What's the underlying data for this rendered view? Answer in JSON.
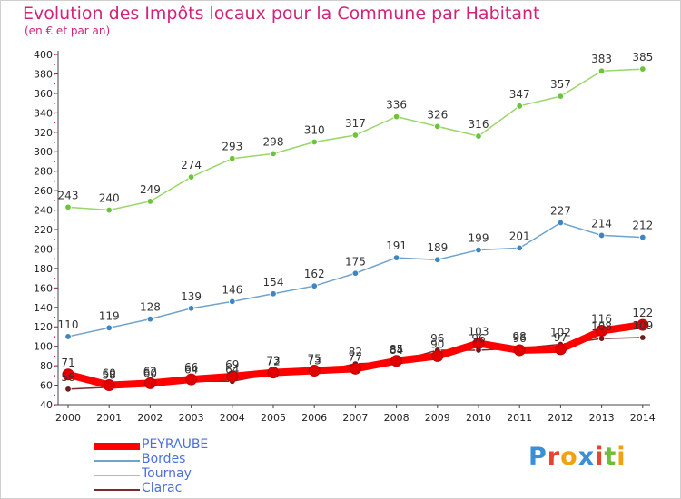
{
  "header": {
    "title": "Evolution des Impôts locaux pour la Commune par Habitant",
    "subtitle": "(en € et par an)"
  },
  "logo": {
    "text": "Proxiti"
  },
  "chart_data": {
    "type": "line",
    "title": "Evolution des Impôts locaux pour la Commune par Habitant",
    "subtitle": "(en € et par an)",
    "xlabel": "",
    "ylabel": "",
    "ylim": [
      40,
      400
    ],
    "yticks": [
      40,
      60,
      80,
      100,
      120,
      140,
      160,
      180,
      200,
      220,
      240,
      260,
      280,
      300,
      320,
      340,
      360,
      380,
      400
    ],
    "grid": false,
    "legend_position": "bottom-left",
    "x": [
      "2000",
      "2001",
      "2002",
      "2003",
      "2004",
      "2005",
      "2006",
      "2007",
      "2008",
      "2009",
      "2010",
      "2011",
      "2012",
      "2013",
      "2014"
    ],
    "series": [
      {
        "name": "Tournay",
        "color": "#9ad66a",
        "marker": "#6cc33c",
        "values": [
          243,
          240,
          249,
          274,
          293,
          298,
          310,
          317,
          336,
          326,
          316,
          347,
          357,
          383,
          385
        ]
      },
      {
        "name": "Bordes",
        "color": "#6fa3cc",
        "marker": "#3d86c2",
        "values": [
          110,
          119,
          128,
          139,
          146,
          154,
          162,
          175,
          191,
          189,
          199,
          201,
          227,
          214,
          212
        ]
      },
      {
        "name": "Clarac",
        "color": "#7a2a2a",
        "marker": "#6b1e1e",
        "values": [
          56,
          58,
          60,
          64,
          64,
          72,
          73,
          82,
          84,
          96,
          96,
          98,
          102,
          108,
          109
        ]
      },
      {
        "name": "PEYRAUBE",
        "color": "#ff0000",
        "marker": "#e00000",
        "values": [
          71,
          60,
          62,
          66,
          69,
          73,
          75,
          77,
          85,
          90,
          103,
          96,
          97,
          116,
          122
        ]
      }
    ]
  }
}
